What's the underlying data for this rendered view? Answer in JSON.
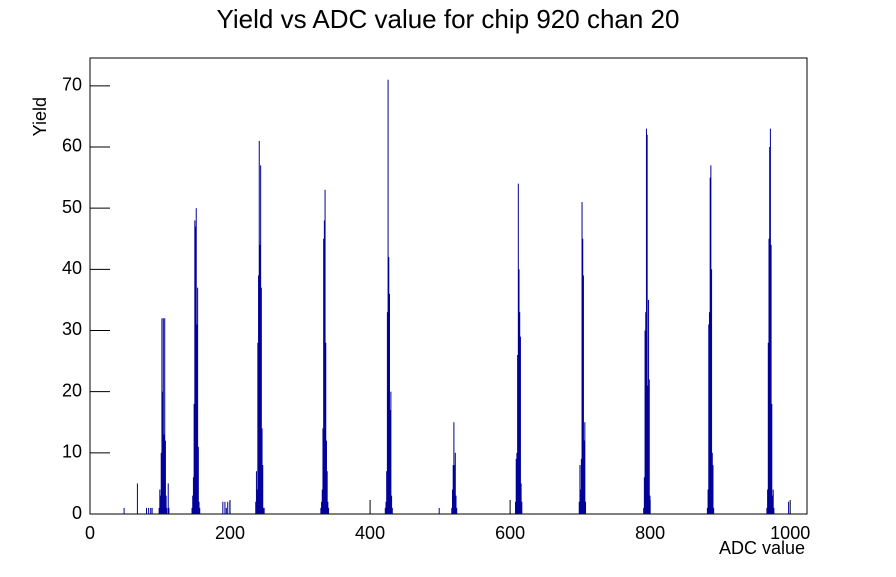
{
  "chart_data": {
    "type": "histogram",
    "title": "Yield vs ADC value for chip 920 chan 20",
    "x_label": "ADC value",
    "y_label": "Yield",
    "color": "#000099",
    "xlim": [
      0,
      1024
    ],
    "ylim": [
      0,
      74.55
    ],
    "xticks": [
      0,
      200,
      400,
      600,
      800,
      1000
    ],
    "yticks": [
      0,
      10,
      20,
      30,
      40,
      50,
      60,
      70
    ],
    "x": [
      48,
      67,
      80,
      83,
      86,
      88,
      98,
      99,
      100,
      101,
      102,
      103,
      104,
      105,
      106,
      107,
      108,
      109,
      111,
      112,
      145,
      146,
      147,
      148,
      149,
      150,
      151,
      152,
      153,
      154,
      155,
      156,
      189,
      192,
      194,
      196,
      199,
      236,
      237,
      238,
      239,
      240,
      241,
      242,
      243,
      244,
      245,
      246,
      247,
      248,
      329,
      330,
      331,
      332,
      333,
      334,
      335,
      336,
      337,
      338,
      339,
      340,
      421,
      422,
      423,
      424,
      425,
      426,
      427,
      428,
      429,
      430,
      431,
      498,
      516,
      517,
      518,
      519,
      520,
      521,
      522,
      523,
      607,
      608,
      609,
      610,
      611,
      612,
      613,
      614,
      615,
      616,
      698,
      699,
      700,
      701,
      702,
      703,
      704,
      705,
      706,
      707,
      790,
      791,
      792,
      793,
      794,
      795,
      796,
      797,
      798,
      799,
      881,
      882,
      883,
      884,
      885,
      886,
      887,
      888,
      889,
      890,
      966,
      967,
      968,
      969,
      970,
      971,
      972,
      973,
      974,
      975,
      976,
      997
    ],
    "values": [
      1,
      5,
      1,
      1,
      1,
      1,
      1,
      4,
      3,
      10,
      32,
      20,
      32,
      13,
      32,
      12,
      3,
      1,
      5,
      1,
      1,
      3,
      6,
      18,
      48,
      47,
      50,
      31,
      37,
      11,
      2,
      1,
      2,
      2,
      1,
      2,
      2,
      2,
      7,
      4,
      28,
      39,
      61,
      44,
      57,
      37,
      14,
      8,
      1,
      1,
      1,
      2,
      4,
      14,
      45,
      48,
      53,
      28,
      12,
      7,
      2,
      1,
      1,
      2,
      7,
      33,
      71,
      42,
      36,
      17,
      20,
      3,
      1,
      1,
      1,
      4,
      8,
      15,
      8,
      10,
      3,
      1,
      2,
      9,
      10,
      26,
      54,
      40,
      33,
      29,
      5,
      2,
      2,
      8,
      4,
      9,
      51,
      45,
      39,
      12,
      15,
      2,
      1,
      6,
      30,
      33,
      63,
      62,
      21,
      35,
      22,
      3,
      1,
      4,
      31,
      33,
      55,
      57,
      40,
      10,
      8,
      1,
      1,
      4,
      28,
      45,
      60,
      63,
      44,
      18,
      3,
      4,
      1,
      2
    ]
  }
}
